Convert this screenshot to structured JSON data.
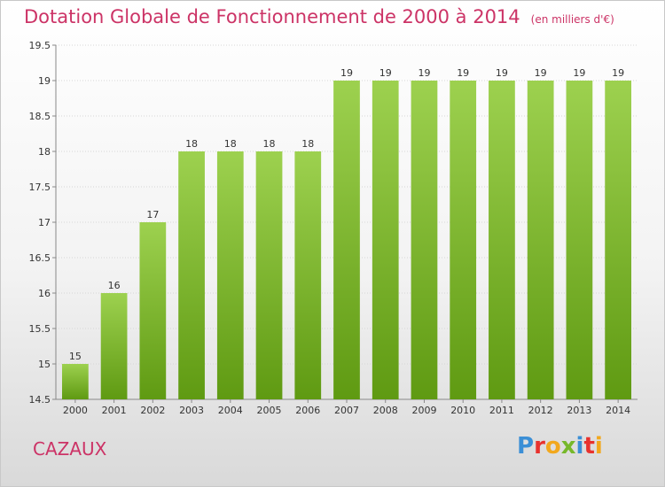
{
  "header": {
    "title": "Dotation Globale de Fonctionnement de 2000 à 2014",
    "unit": "(en milliers d'€)"
  },
  "footer": {
    "commune": "CAZAUX",
    "logo": "Proxiti",
    "logo_colors": [
      "#3b8fd6",
      "#e8322e",
      "#f2a81d",
      "#77b82a",
      "#3b8fd6",
      "#e8322e",
      "#f2a81d"
    ]
  },
  "colors": {
    "bar_top": "#9dd14f",
    "bar_bottom": "#5f9a12",
    "accent": "#cc3366"
  },
  "chart_data": {
    "type": "bar",
    "title": "Dotation Globale de Fonctionnement de 2000 à 2014",
    "subtitle": "(en milliers d'€)",
    "xlabel": "",
    "ylabel": "",
    "categories": [
      "2000",
      "2001",
      "2002",
      "2003",
      "2004",
      "2005",
      "2006",
      "2007",
      "2008",
      "2009",
      "2010",
      "2011",
      "2012",
      "2013",
      "2014"
    ],
    "values": [
      15,
      16,
      17,
      18,
      18,
      18,
      18,
      19,
      19,
      19,
      19,
      19,
      19,
      19,
      19
    ],
    "data_labels": [
      "15",
      "16",
      "17",
      "18",
      "18",
      "18",
      "18",
      "19",
      "19",
      "19",
      "19",
      "19",
      "19",
      "19",
      "19"
    ],
    "ylim": [
      14.5,
      19.5
    ],
    "yticks": [
      14.5,
      15,
      15.5,
      16,
      16.5,
      17,
      17.5,
      18,
      18.5,
      19,
      19.5
    ],
    "ytick_labels": [
      "14.5",
      "15",
      "15.5",
      "16",
      "16.5",
      "17",
      "17.5",
      "18",
      "18.5",
      "19",
      "19.5"
    ],
    "grid": true,
    "legend": "none"
  }
}
